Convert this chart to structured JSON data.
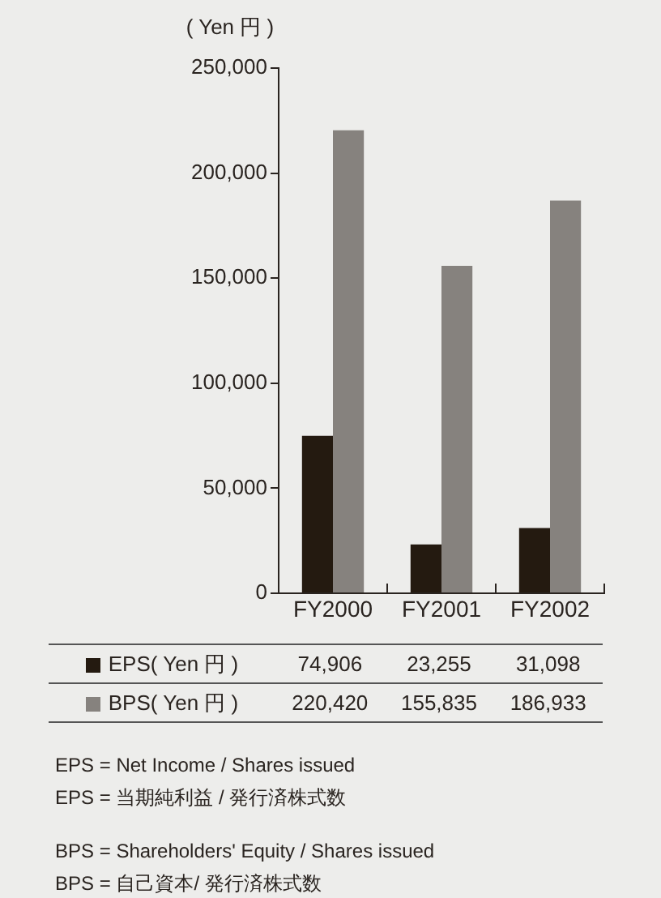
{
  "chart_data": {
    "type": "bar",
    "ylabel": "( Yen 円 )",
    "categories": [
      "FY2000",
      "FY2001",
      "FY2002"
    ],
    "series": [
      {
        "name": "EPS( Yen 円 )",
        "color": "#241a10",
        "values": [
          74906,
          23255,
          31098
        ],
        "value_labels": [
          "74,906",
          "23,255",
          "31,098"
        ]
      },
      {
        "name": "BPS( Yen 円 )",
        "color": "#86827e",
        "values": [
          220420,
          155835,
          186933
        ],
        "value_labels": [
          "220,420",
          "155,835",
          "186,933"
        ]
      }
    ],
    "ylim": [
      0,
      250000
    ],
    "yticks": [
      0,
      {
        "value": 50000,
        "label": "50,000"
      },
      {
        "value": 100000,
        "label": "100,000"
      },
      {
        "value": 150000,
        "label": "150,000"
      },
      {
        "value": 200000,
        "label": "200,000"
      },
      {
        "value": 250000,
        "label": "250,000"
      }
    ],
    "grid": false,
    "legend": "bottom left",
    "annotations": [
      "EPS = Net Income / Shares issued",
      "EPS = 当期純利益 / 発行済株式数",
      "BPS = Shareholders' Equity / Shares issued",
      "BPS = 自己資本/ 発行済株式数"
    ]
  }
}
